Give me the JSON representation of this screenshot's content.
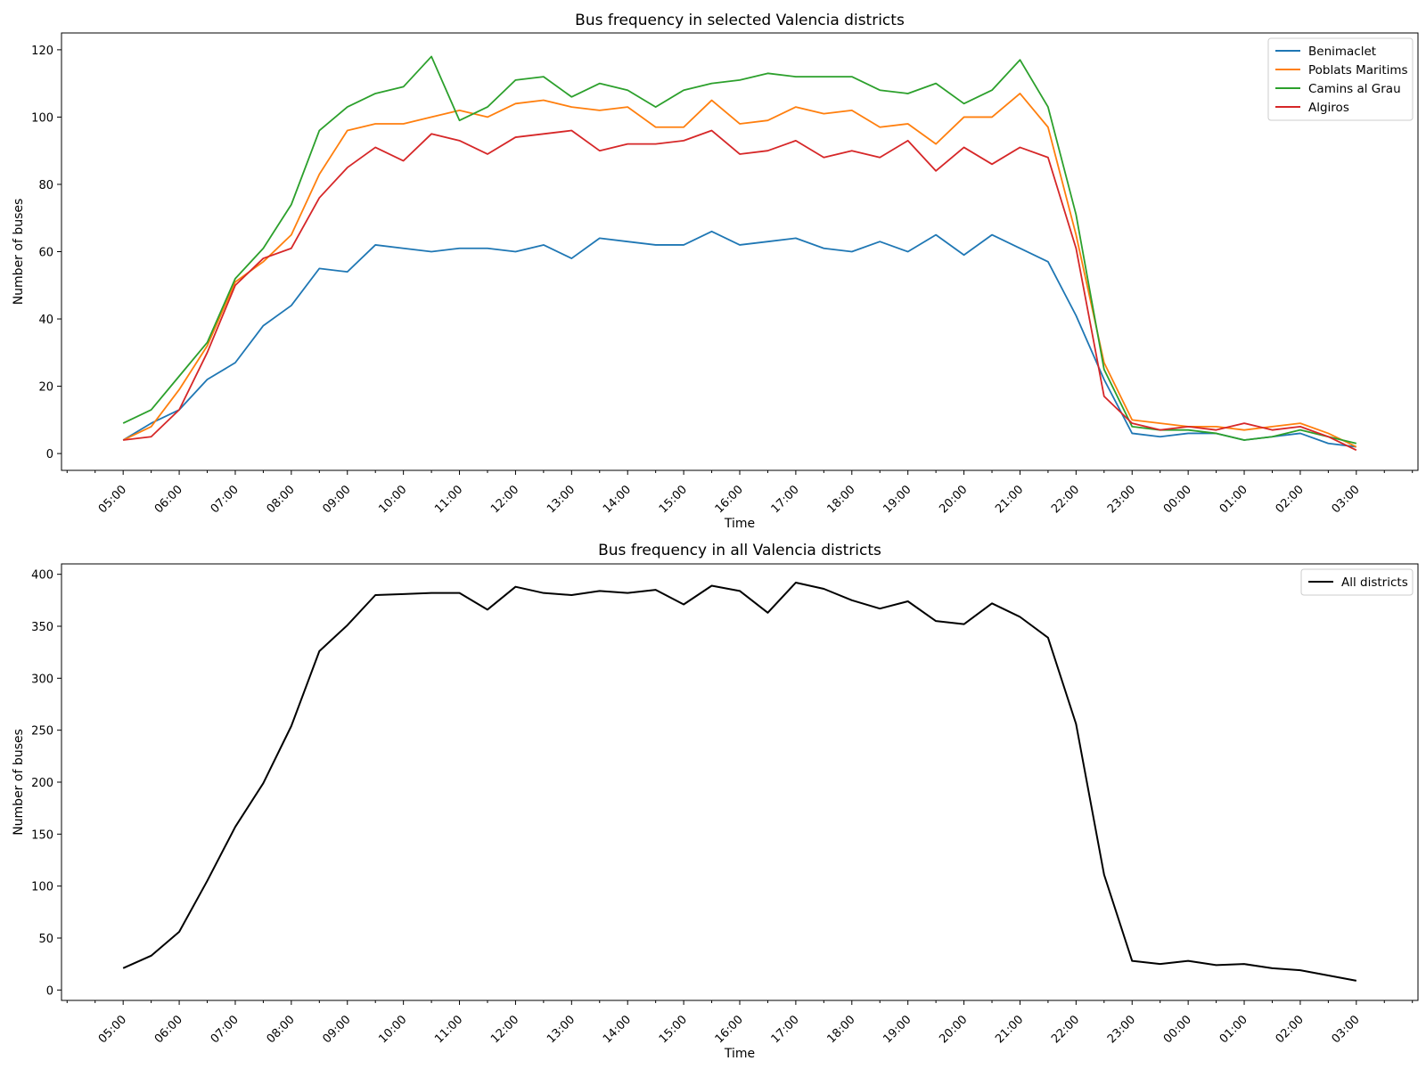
{
  "time_ticks": [
    "05:00",
    "06:00",
    "07:00",
    "08:00",
    "09:00",
    "10:00",
    "11:00",
    "12:00",
    "13:00",
    "14:00",
    "15:00",
    "16:00",
    "17:00",
    "18:00",
    "19:00",
    "20:00",
    "21:00",
    "22:00",
    "23:00",
    "00:00",
    "01:00",
    "02:00",
    "03:00"
  ],
  "chart_data": [
    {
      "type": "line",
      "title": "Bus frequency in selected Valencia districts",
      "xlabel": "Time",
      "ylabel": "Number of buses",
      "ylim": [
        -5,
        125
      ],
      "yticks": [
        0,
        20,
        40,
        60,
        80,
        100,
        120
      ],
      "grid": false,
      "legend_position": "top-right",
      "x_interval_minutes": 30,
      "x_start": "05:00",
      "x_end": "03:00",
      "series": [
        {
          "name": "Benimaclet",
          "color": "#1f77b4",
          "values": [
            4,
            9,
            13,
            22,
            27,
            38,
            44,
            55,
            54,
            62,
            61,
            60,
            61,
            61,
            60,
            62,
            58,
            64,
            63,
            62,
            62,
            66,
            62,
            63,
            64,
            61,
            60,
            63,
            60,
            65,
            59,
            65,
            61,
            57,
            41,
            22,
            6,
            5,
            6,
            6,
            4,
            5,
            6,
            3,
            2
          ]
        },
        {
          "name": "Poblats Maritims",
          "color": "#ff7f0e",
          "values": [
            4,
            8,
            19,
            32,
            51,
            57,
            65,
            83,
            96,
            98,
            98,
            100,
            102,
            100,
            104,
            105,
            103,
            102,
            103,
            97,
            97,
            105,
            98,
            99,
            103,
            101,
            102,
            97,
            98,
            92,
            100,
            100,
            107,
            97,
            65,
            27,
            10,
            9,
            8,
            8,
            7,
            8,
            9,
            6,
            2
          ]
        },
        {
          "name": "Camins al Grau",
          "color": "#2ca02c",
          "values": [
            9,
            13,
            23,
            33,
            52,
            61,
            74,
            96,
            103,
            107,
            109,
            118,
            99,
            103,
            111,
            112,
            106,
            110,
            108,
            103,
            108,
            110,
            111,
            113,
            112,
            112,
            112,
            108,
            107,
            110,
            104,
            108,
            117,
            103,
            71,
            25,
            8,
            7,
            7,
            6,
            4,
            5,
            7,
            5,
            3
          ]
        },
        {
          "name": "Algiros",
          "color": "#d62728",
          "values": [
            4,
            5,
            13,
            30,
            50,
            58,
            61,
            76,
            85,
            91,
            87,
            95,
            93,
            89,
            94,
            95,
            96,
            90,
            92,
            92,
            93,
            96,
            89,
            90,
            93,
            88,
            90,
            88,
            93,
            84,
            91,
            86,
            91,
            88,
            61,
            17,
            9,
            7,
            8,
            7,
            9,
            7,
            8,
            5,
            1
          ]
        }
      ]
    },
    {
      "type": "line",
      "title": "Bus frequency in all Valencia districts",
      "xlabel": "Time",
      "ylabel": "Number of buses",
      "ylim": [
        -10,
        410
      ],
      "yticks": [
        0,
        50,
        100,
        150,
        200,
        250,
        300,
        350,
        400
      ],
      "grid": false,
      "legend_position": "top-right",
      "x_interval_minutes": 30,
      "x_start": "05:00",
      "x_end": "03:00",
      "series": [
        {
          "name": "All districts",
          "color": "#000000",
          "values": [
            21,
            33,
            56,
            105,
            157,
            199,
            254,
            326,
            351,
            380,
            381,
            382,
            382,
            366,
            388,
            382,
            380,
            384,
            382,
            385,
            371,
            389,
            384,
            363,
            392,
            386,
            375,
            367,
            374,
            355,
            352,
            372,
            359,
            339,
            256,
            111,
            28,
            25,
            28,
            24,
            25,
            21,
            19,
            14,
            9
          ]
        }
      ]
    }
  ]
}
